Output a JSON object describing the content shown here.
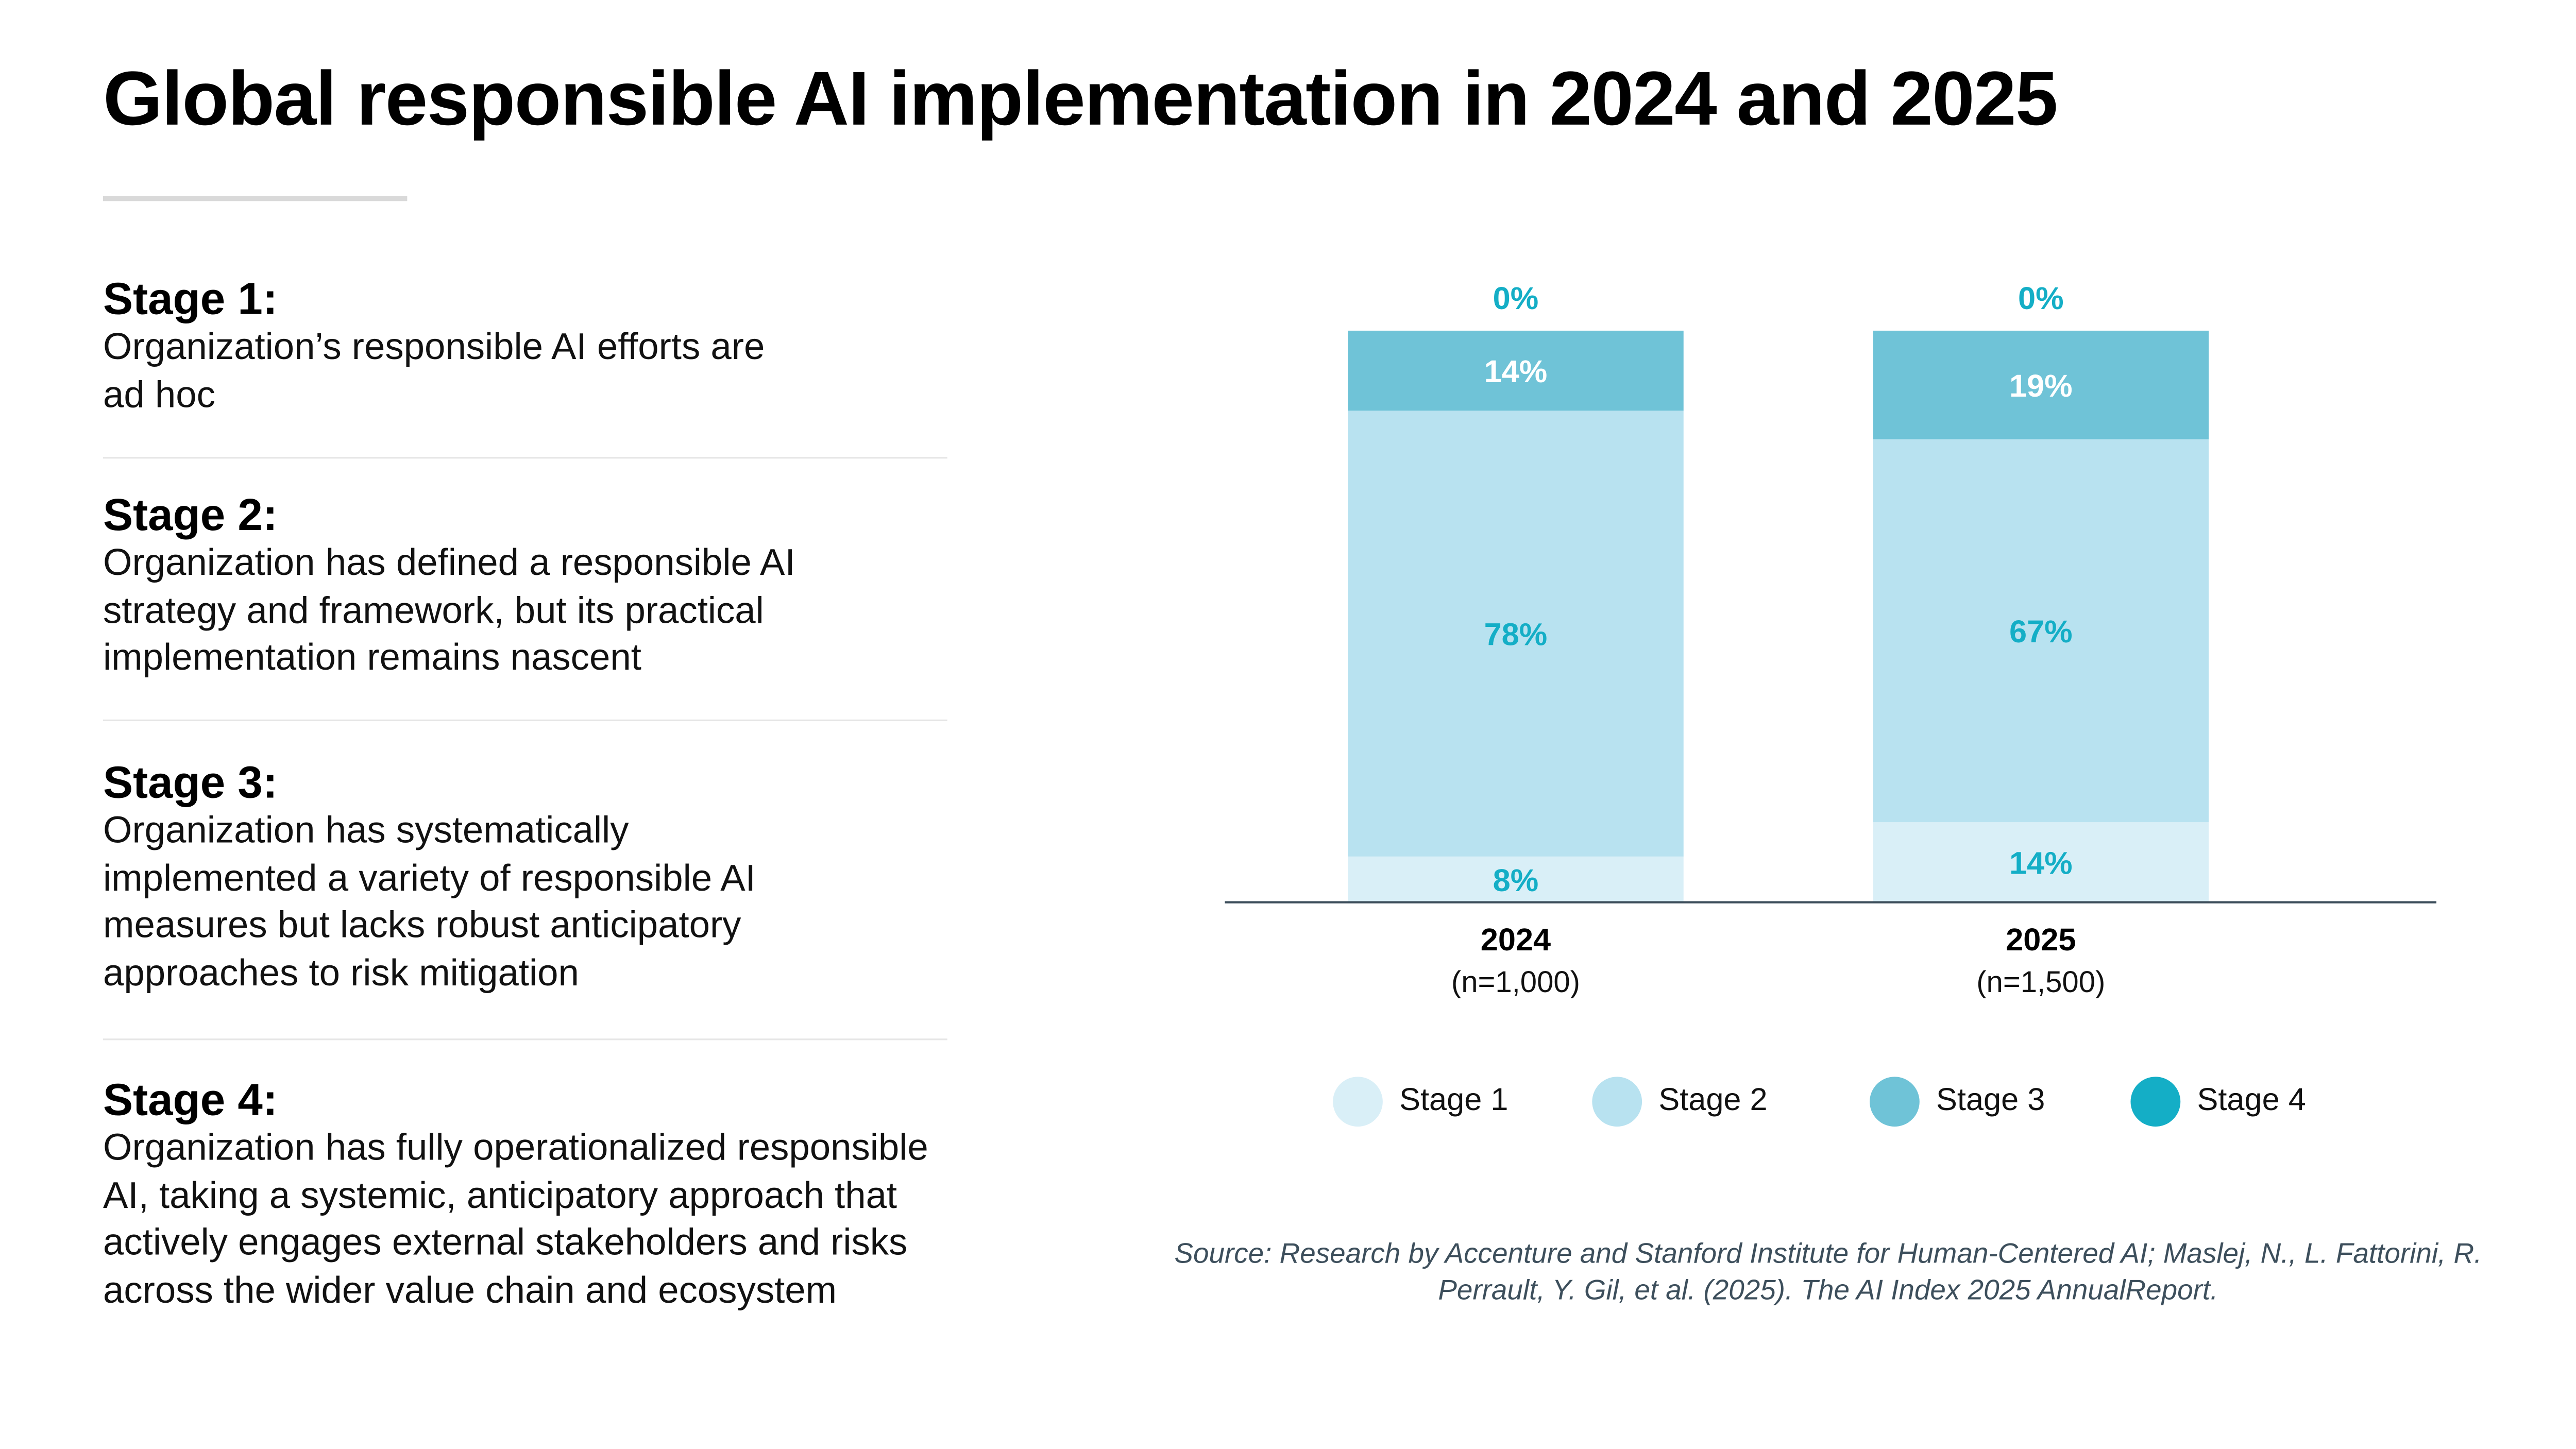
{
  "title": "Global responsible AI implementation in 2024 and 2025",
  "stages": [
    {
      "heading": "Stage 1:",
      "description": "Organization’s responsible AI efforts are ad hoc"
    },
    {
      "heading": "Stage 2:",
      "description": "Organization has defined a responsible AI strategy and framework, but its practical implementation remains nascent"
    },
    {
      "heading": "Stage 3:",
      "description": "Organization has systematically implemented a variety of responsible AI measures but lacks robust anticipatory approaches to risk mitigation"
    },
    {
      "heading": "Stage 4:",
      "description": "Organization has fully operationalized responsible AI, taking a systemic, anticipatory approach that actively engages external stakeholders and risks across the wider value chain and ecosystem"
    }
  ],
  "chart_data": {
    "type": "bar",
    "stacked": true,
    "categories": [
      "2024",
      "2025"
    ],
    "category_sublabels": [
      "(n=1,000)",
      "(n=1,500)"
    ],
    "series": [
      {
        "name": "Stage 1",
        "values": [
          8,
          14
        ],
        "color": "#d9eff7",
        "labels": [
          "8%",
          "14%"
        ]
      },
      {
        "name": "Stage 2",
        "values": [
          78,
          67
        ],
        "color": "#b8e2f0",
        "labels": [
          "78%",
          "67%"
        ]
      },
      {
        "name": "Stage 3",
        "values": [
          14,
          19
        ],
        "color": "#6fc3d7",
        "labels": [
          "14%",
          "19%"
        ]
      },
      {
        "name": "Stage 4",
        "values": [
          0,
          0
        ],
        "color": "#14aec6",
        "labels": [
          "0%",
          "0%"
        ]
      }
    ],
    "ylim": [
      0,
      100
    ],
    "grid": false,
    "legend_position": "bottom",
    "label_color": "#14aec6"
  },
  "source": "Source: Research by Accenture and Stanford Institute for Human-Centered AI; Maslej, N., L. Fattorini, R. Perrault, Y. Gil, et al. (2025). The AI Index 2025 AnnualReport."
}
